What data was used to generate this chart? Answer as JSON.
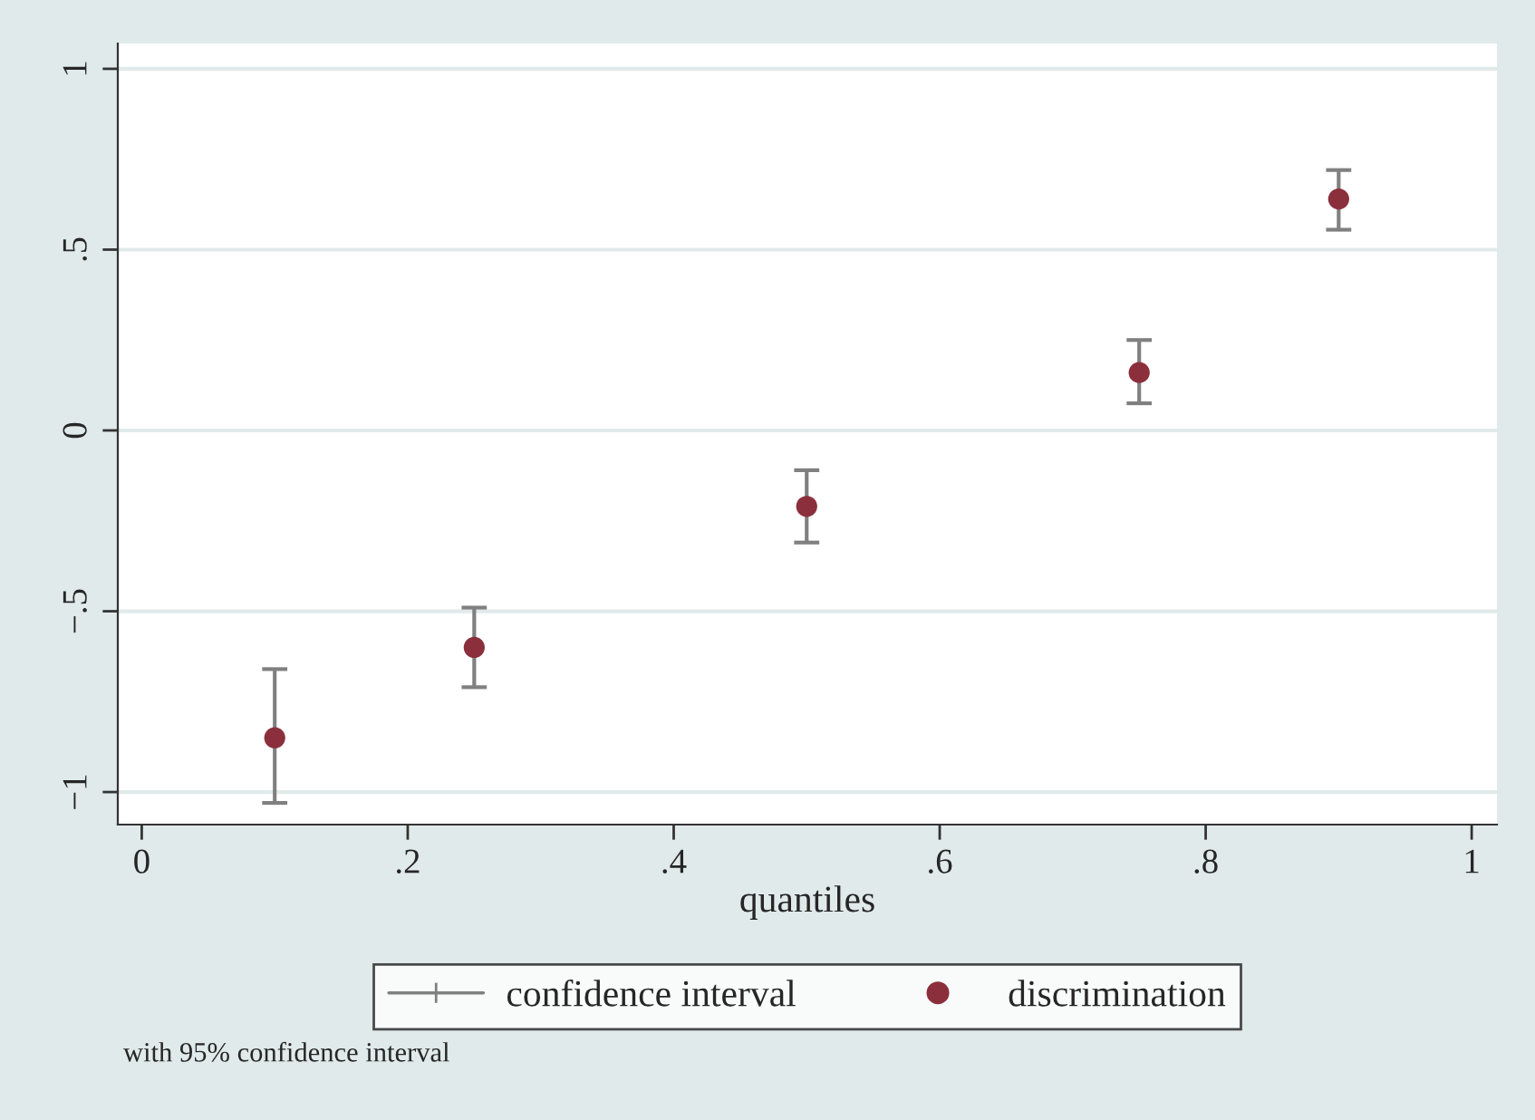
{
  "chart_data": {
    "type": "scatter",
    "xlabel": "quantiles",
    "annotations": [
      "confidence interval",
      "with 95% confidence interval"
    ],
    "x": [
      0.1,
      0.25,
      0.5,
      0.75,
      0.9
    ],
    "series": [
      {
        "name": "discrimination",
        "color": "#8b2f3c",
        "values": [
          -0.85,
          -0.6,
          -0.21,
          0.16,
          0.64
        ],
        "errors": [
          [
            -1.03,
            -0.66
          ],
          [
            -0.71,
            -0.49
          ],
          [
            -0.31,
            -0.11
          ],
          [
            0.075,
            0.25
          ],
          [
            0.555,
            0.72
          ]
        ]
      }
    ],
    "xlim": [
      -0.018,
      1.019
    ],
    "ylim": [
      -1.09,
      1.07
    ],
    "xticks": [
      {
        "value": 0,
        "label": "0"
      },
      {
        "value": 0.2,
        "label": ".2"
      },
      {
        "value": 0.4,
        "label": ".4"
      },
      {
        "value": 0.6,
        "label": ".6"
      },
      {
        "value": 0.8,
        "label": ".8"
      },
      {
        "value": 1,
        "label": "1"
      }
    ],
    "yticks": [
      {
        "value": -1,
        "label": "−1"
      },
      {
        "value": -0.5,
        "label": "−.5"
      },
      {
        "value": 0,
        "label": "0"
      },
      {
        "value": 0.5,
        "label": ".5"
      },
      {
        "value": 1,
        "label": "1"
      }
    ],
    "grid": "y",
    "legend": "bottom",
    "marker": "circle"
  }
}
